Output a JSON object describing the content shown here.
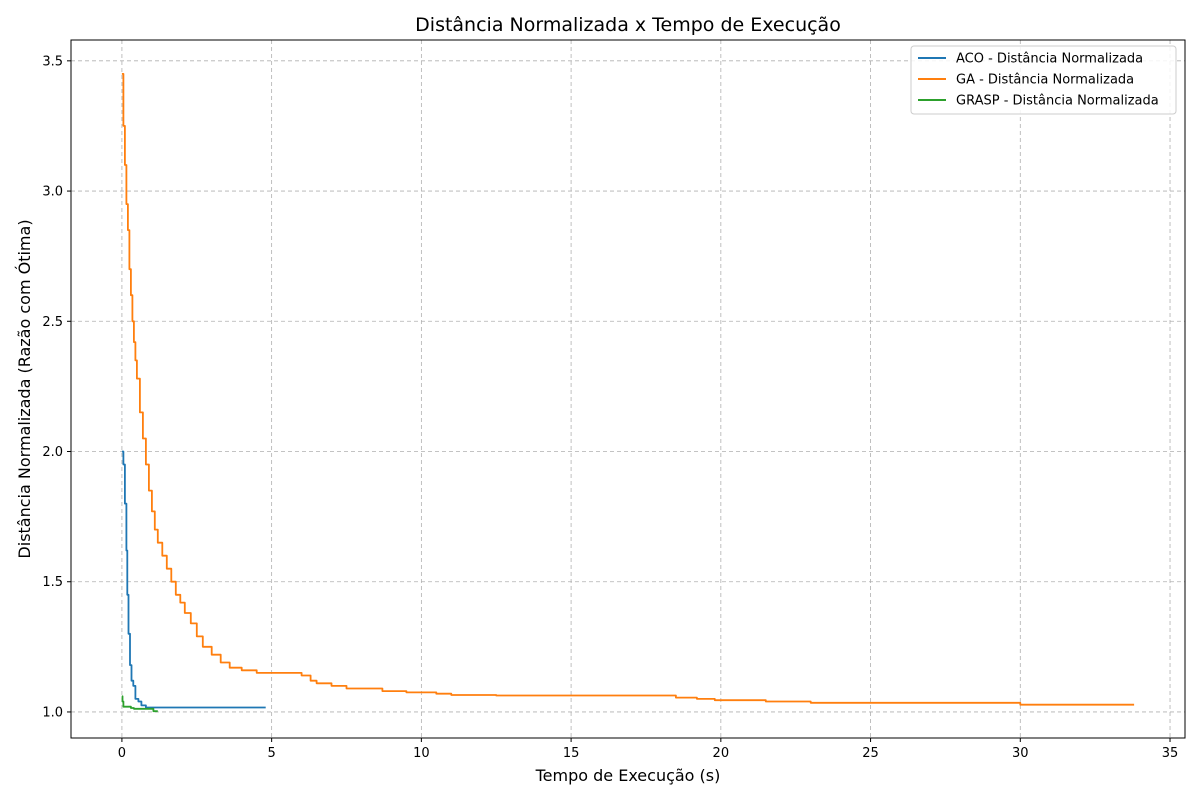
{
  "chart_data": {
    "type": "line",
    "title": "Distância Normalizada x Tempo de Execução",
    "xlabel": "Tempo de Execução (s)",
    "ylabel": "Distância Normalizada (Razão com Ótima)",
    "xlim": [
      -1.7,
      35.5
    ],
    "ylim": [
      0.9,
      3.58
    ],
    "xticks": [
      0,
      5,
      10,
      15,
      20,
      25,
      30,
      35
    ],
    "yticks": [
      1.0,
      1.5,
      2.0,
      2.5,
      3.0,
      3.5
    ],
    "xtick_labels": [
      "0",
      "5",
      "10",
      "15",
      "20",
      "25",
      "30",
      "35"
    ],
    "ytick_labels": [
      "1.0",
      "1.5",
      "2.0",
      "2.5",
      "3.0",
      "3.5"
    ],
    "grid": true,
    "legend_position": "top-right",
    "series": [
      {
        "name": "ACO - Distância Normalizada",
        "color": "#1f77b4",
        "x": [
          0.0,
          0.05,
          0.1,
          0.13,
          0.15,
          0.18,
          0.22,
          0.27,
          0.32,
          0.38,
          0.45,
          0.55,
          0.65,
          0.8,
          1.2,
          2.0,
          3.0,
          4.0,
          4.8
        ],
        "y": [
          2.0,
          1.95,
          1.8,
          1.8,
          1.62,
          1.45,
          1.3,
          1.18,
          1.12,
          1.1,
          1.05,
          1.04,
          1.025,
          1.017,
          1.017,
          1.017,
          1.017,
          1.017,
          1.017
        ]
      },
      {
        "name": "GA - Distância Normalizada",
        "color": "#ff7f0e",
        "x": [
          0.0,
          0.05,
          0.1,
          0.15,
          0.2,
          0.25,
          0.3,
          0.35,
          0.4,
          0.45,
          0.5,
          0.6,
          0.7,
          0.8,
          0.9,
          1.0,
          1.1,
          1.2,
          1.35,
          1.5,
          1.65,
          1.8,
          1.95,
          2.1,
          2.3,
          2.5,
          2.7,
          3.0,
          3.3,
          3.6,
          4.0,
          4.5,
          5.0,
          5.5,
          6.0,
          6.3,
          6.5,
          7.0,
          7.5,
          8.0,
          8.7,
          9.5,
          10.5,
          11.0,
          12.5,
          15.0,
          18.3,
          18.5,
          19.2,
          19.8,
          21.5,
          22.9,
          23.0,
          25.0,
          29.9,
          30.0,
          33.8
        ],
        "y": [
          3.45,
          3.25,
          3.1,
          2.95,
          2.85,
          2.7,
          2.6,
          2.5,
          2.42,
          2.35,
          2.28,
          2.15,
          2.05,
          1.95,
          1.85,
          1.77,
          1.7,
          1.65,
          1.6,
          1.55,
          1.5,
          1.45,
          1.42,
          1.38,
          1.34,
          1.29,
          1.25,
          1.22,
          1.19,
          1.17,
          1.16,
          1.15,
          1.15,
          1.15,
          1.14,
          1.12,
          1.11,
          1.1,
          1.09,
          1.09,
          1.08,
          1.075,
          1.07,
          1.065,
          1.063,
          1.063,
          1.063,
          1.055,
          1.05,
          1.045,
          1.04,
          1.04,
          1.035,
          1.035,
          1.035,
          1.028,
          1.028
        ]
      },
      {
        "name": "GRASP - Distância Normalizada",
        "color": "#2ca02c",
        "x": [
          0.0,
          0.02,
          0.05,
          0.1,
          0.2,
          0.3,
          0.4,
          0.6,
          0.8,
          1.0,
          1.05,
          1.2
        ],
        "y": [
          1.06,
          1.04,
          1.02,
          1.02,
          1.02,
          1.015,
          1.012,
          1.012,
          1.012,
          1.012,
          1.003,
          1.003
        ]
      }
    ]
  },
  "colors": {
    "grid": "#b0b0b0",
    "axis": "#000000"
  }
}
